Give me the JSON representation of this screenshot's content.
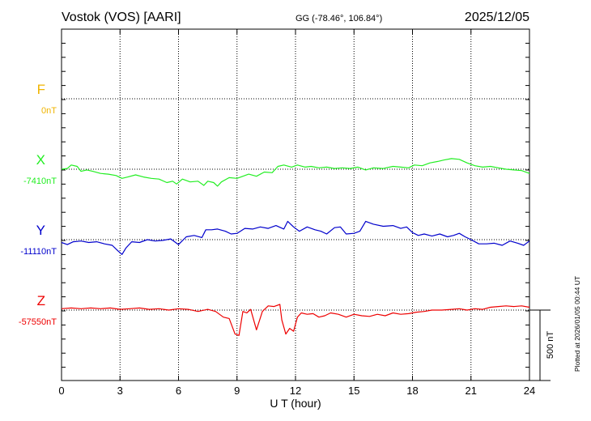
{
  "header": {
    "station": "Vostok (VOS)  [AARI]",
    "coords": "GG (-78.46°, 106.84°)",
    "date": "2025/12/05"
  },
  "footer": {
    "plotted": "Plotted at 2026/01/05 00:44 UT"
  },
  "chart_data": {
    "type": "line",
    "title": "Vostok (VOS)  [AARI]",
    "xlabel": "U T (hour)",
    "xlim": [
      0,
      24
    ],
    "xticks": [
      0,
      3,
      6,
      9,
      12,
      15,
      18,
      21,
      24
    ],
    "grid": true,
    "scale_bar": "500 nT",
    "scale_bar_value_nT": 500,
    "series": [
      {
        "name": "F",
        "baseline_label": "0nT",
        "color": "#f0b400",
        "x": [],
        "y": []
      },
      {
        "name": "X",
        "baseline_label": "-7410nT",
        "color": "#22ee22",
        "x": [
          0,
          0.3,
          0.5,
          0.8,
          1.0,
          1.3,
          1.6,
          2.0,
          2.4,
          2.8,
          3.1,
          3.4,
          3.8,
          4.2,
          4.6,
          5.0,
          5.4,
          5.7,
          5.9,
          6.2,
          6.6,
          7.0,
          7.3,
          7.5,
          7.8,
          8.0,
          8.2,
          8.6,
          9.0,
          9.3,
          9.6,
          10.0,
          10.4,
          10.8,
          11.1,
          11.4,
          11.8,
          12.1,
          12.5,
          12.8,
          13.2,
          13.6,
          14.0,
          14.4,
          14.8,
          15.2,
          15.6,
          16.0,
          16.5,
          17.0,
          17.4,
          17.8,
          18.1,
          18.5,
          18.9,
          19.3,
          19.6,
          20.0,
          20.4,
          20.8,
          21.2,
          21.6,
          22.0,
          22.4,
          22.8,
          23.2,
          23.6,
          24.0
        ],
        "y": [
          -7410,
          -7405,
          -7380,
          -7390,
          -7425,
          -7415,
          -7425,
          -7440,
          -7445,
          -7455,
          -7475,
          -7465,
          -7450,
          -7465,
          -7475,
          -7480,
          -7505,
          -7495,
          -7515,
          -7480,
          -7500,
          -7495,
          -7525,
          -7495,
          -7505,
          -7530,
          -7500,
          -7470,
          -7475,
          -7460,
          -7445,
          -7460,
          -7430,
          -7435,
          -7390,
          -7380,
          -7395,
          -7380,
          -7395,
          -7390,
          -7400,
          -7395,
          -7405,
          -7400,
          -7405,
          -7395,
          -7415,
          -7400,
          -7405,
          -7390,
          -7395,
          -7400,
          -7380,
          -7385,
          -7365,
          -7355,
          -7345,
          -7335,
          -7340,
          -7365,
          -7385,
          -7395,
          -7390,
          -7400,
          -7410,
          -7415,
          -7420,
          -7440
        ]
      },
      {
        "name": "Y",
        "baseline_label": "-11110nT",
        "color": "#0000cc",
        "x": [
          0,
          0.3,
          0.6,
          1.0,
          1.4,
          1.8,
          2.2,
          2.6,
          2.9,
          3.1,
          3.3,
          3.6,
          4.0,
          4.4,
          4.8,
          5.2,
          5.6,
          6.0,
          6.4,
          6.8,
          7.2,
          7.4,
          7.7,
          8.0,
          8.4,
          8.7,
          9.0,
          9.4,
          9.8,
          10.2,
          10.6,
          11.0,
          11.4,
          11.6,
          11.9,
          12.2,
          12.6,
          13.0,
          13.3,
          13.6,
          14.0,
          14.3,
          14.6,
          15.0,
          15.3,
          15.6,
          16.0,
          16.5,
          17.0,
          17.4,
          17.7,
          18.0,
          18.3,
          18.6,
          19.0,
          19.4,
          19.8,
          20.1,
          20.4,
          20.7,
          21.0,
          21.4,
          21.8,
          22.2,
          22.6,
          23.0,
          23.4,
          23.7,
          24.0
        ],
        "y": [
          -11130,
          -11145,
          -11125,
          -11120,
          -11130,
          -11125,
          -11140,
          -11150,
          -11190,
          -11215,
          -11170,
          -11125,
          -11130,
          -11110,
          -11120,
          -11115,
          -11105,
          -11145,
          -11090,
          -11080,
          -11095,
          -11040,
          -11040,
          -11035,
          -11050,
          -11070,
          -11065,
          -11030,
          -11035,
          -11020,
          -11030,
          -11010,
          -11035,
          -10980,
          -11020,
          -11050,
          -11020,
          -11040,
          -11050,
          -11070,
          -11025,
          -11020,
          -11070,
          -11065,
          -11050,
          -10980,
          -11000,
          -11015,
          -11010,
          -11030,
          -11020,
          -11060,
          -11080,
          -11070,
          -11085,
          -11070,
          -11090,
          -11080,
          -11065,
          -11090,
          -11110,
          -11140,
          -11140,
          -11135,
          -11150,
          -11120,
          -11135,
          -11150,
          -11120
        ]
      },
      {
        "name": "Z",
        "baseline_label": "-57550nT",
        "color": "#ee0000",
        "x": [
          0,
          0.5,
          1.0,
          1.5,
          2.0,
          2.5,
          3.0,
          3.5,
          4.0,
          4.5,
          5.0,
          5.5,
          6.0,
          6.5,
          7.0,
          7.5,
          7.9,
          8.3,
          8.6,
          8.9,
          9.1,
          9.3,
          9.5,
          9.7,
          10.0,
          10.3,
          10.6,
          10.9,
          11.2,
          11.3,
          11.5,
          11.7,
          11.9,
          12.1,
          12.3,
          12.6,
          12.9,
          13.2,
          13.5,
          13.8,
          14.2,
          14.6,
          15.0,
          15.4,
          15.8,
          16.2,
          16.6,
          17.0,
          17.4,
          17.8,
          18.2,
          18.6,
          19.0,
          19.5,
          20.0,
          20.4,
          20.8,
          21.2,
          21.6,
          22.0,
          22.4,
          22.8,
          23.2,
          23.6,
          24.0
        ],
        "y": [
          -57540,
          -57535,
          -57540,
          -57535,
          -57540,
          -57535,
          -57545,
          -57540,
          -57535,
          -57545,
          -57540,
          -57550,
          -57540,
          -57545,
          -57560,
          -57545,
          -57560,
          -57600,
          -57610,
          -57720,
          -57730,
          -57560,
          -57570,
          -57545,
          -57690,
          -57560,
          -57520,
          -57525,
          -57510,
          -57620,
          -57720,
          -57680,
          -57700,
          -57600,
          -57570,
          -57580,
          -57575,
          -57600,
          -57590,
          -57570,
          -57580,
          -57600,
          -57580,
          -57590,
          -57595,
          -57580,
          -57590,
          -57570,
          -57580,
          -57575,
          -57565,
          -57560,
          -57550,
          -57550,
          -57545,
          -57540,
          -57550,
          -57540,
          -57545,
          -57530,
          -57525,
          -57520,
          -57525,
          -57520,
          -57530
        ]
      }
    ]
  }
}
